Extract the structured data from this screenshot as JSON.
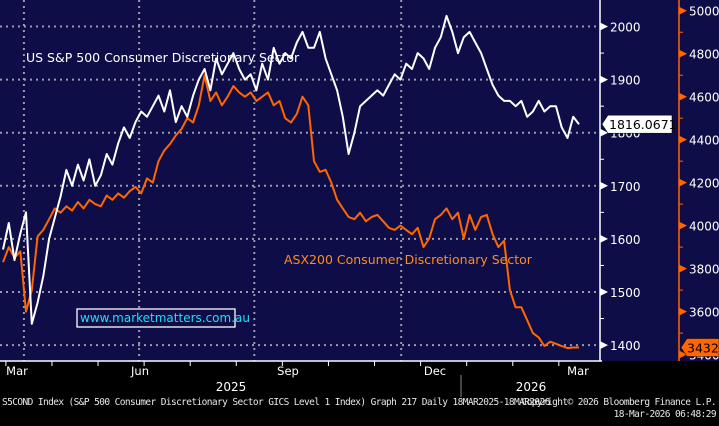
{
  "chart_data": {
    "type": "line",
    "title": "",
    "annotations": {
      "us_label": "US S&P 500 Consumer Discretionary Sector",
      "asx_label": "ASX200 Consumer Discretionary Sector",
      "website": "www.marketmatters.com.au"
    },
    "x_axis": {
      "range": [
        "2025-03-18",
        "2026-03-18"
      ],
      "month_ticks": [
        "Mar",
        "Jun",
        "Sep",
        "Dec",
        "Mar"
      ],
      "year_labels": [
        "2025",
        "2026"
      ]
    },
    "left_axis": {
      "series": "US S&P 500 Consumer Discretionary Sector",
      "range": [
        1370,
        2050
      ],
      "ticks": [
        1400,
        1500,
        1600,
        1700,
        1800,
        1900,
        2000
      ],
      "tick_labels": [
        "1400",
        "1500",
        "1600",
        "1700",
        "1800",
        "1900",
        "2000"
      ],
      "last_value_label": "1816.0671"
    },
    "right_axis": {
      "series": "ASX200 Consumer Discretionary Sector",
      "range": [
        3370,
        5050
      ],
      "ticks": [
        3400,
        3600,
        3800,
        4000,
        4200,
        4400,
        4600,
        4800,
        5000
      ],
      "tick_labels": [
        "3400",
        "3600",
        "3800",
        "4000",
        "4200",
        "4400",
        "4600",
        "4800",
        "5000"
      ],
      "last_value_label": "3432.7"
    },
    "grid": true,
    "legend": "none (inline annotations)",
    "series": [
      {
        "name": "US S&P 500 Consumer Discretionary Sector",
        "axis": "left",
        "color": "#ffffff",
        "t": [
          0,
          0.01,
          0.02,
          0.03,
          0.04,
          0.05,
          0.06,
          0.07,
          0.08,
          0.09,
          0.1,
          0.11,
          0.12,
          0.13,
          0.14,
          0.15,
          0.16,
          0.17,
          0.18,
          0.19,
          0.2,
          0.21,
          0.22,
          0.23,
          0.24,
          0.25,
          0.26,
          0.27,
          0.28,
          0.29,
          0.3,
          0.31,
          0.32,
          0.33,
          0.34,
          0.35,
          0.36,
          0.37,
          0.38,
          0.39,
          0.4,
          0.41,
          0.42,
          0.43,
          0.44,
          0.45,
          0.46,
          0.47,
          0.48,
          0.49,
          0.5,
          0.51,
          0.52,
          0.53,
          0.54,
          0.55,
          0.56,
          0.57,
          0.58,
          0.59,
          0.6,
          0.61,
          0.62,
          0.63,
          0.64,
          0.65,
          0.66,
          0.67,
          0.68,
          0.69,
          0.7,
          0.71,
          0.72,
          0.73,
          0.74,
          0.75,
          0.76,
          0.77,
          0.78,
          0.79,
          0.8,
          0.81,
          0.82,
          0.83,
          0.84,
          0.85,
          0.86,
          0.87,
          0.88,
          0.89,
          0.9,
          0.91,
          0.92,
          0.93,
          0.94,
          0.95,
          0.96,
          0.97,
          0.98,
          0.99,
          1
        ],
        "values": [
          1580,
          1630,
          1560,
          1610,
          1650,
          1440,
          1480,
          1530,
          1600,
          1640,
          1680,
          1730,
          1700,
          1740,
          1710,
          1750,
          1700,
          1720,
          1760,
          1740,
          1780,
          1810,
          1790,
          1820,
          1840,
          1830,
          1850,
          1870,
          1840,
          1880,
          1820,
          1850,
          1830,
          1870,
          1900,
          1920,
          1880,
          1940,
          1910,
          1930,
          1950,
          1920,
          1900,
          1910,
          1880,
          1930,
          1900,
          1960,
          1930,
          1950,
          1940,
          1970,
          1990,
          1960,
          1960,
          1990,
          1940,
          1910,
          1880,
          1830,
          1760,
          1800,
          1850,
          1860,
          1870,
          1880,
          1870,
          1890,
          1910,
          1900,
          1930,
          1920,
          1950,
          1940,
          1920,
          1960,
          1980,
          2020,
          1990,
          1950,
          1980,
          1990,
          1970,
          1950,
          1920,
          1890,
          1870,
          1860,
          1860,
          1850,
          1860,
          1830,
          1840,
          1860,
          1840,
          1850,
          1850,
          1810,
          1790,
          1830,
          1816
        ]
      },
      {
        "name": "ASX200 Consumer Discretionary Sector",
        "axis": "right",
        "color": "#ff6600",
        "t": [
          0,
          0.01,
          0.02,
          0.03,
          0.04,
          0.05,
          0.06,
          0.07,
          0.08,
          0.09,
          0.1,
          0.11,
          0.12,
          0.13,
          0.14,
          0.15,
          0.16,
          0.17,
          0.18,
          0.19,
          0.2,
          0.21,
          0.22,
          0.23,
          0.24,
          0.25,
          0.26,
          0.27,
          0.28,
          0.29,
          0.3,
          0.31,
          0.32,
          0.33,
          0.34,
          0.35,
          0.36,
          0.37,
          0.38,
          0.39,
          0.4,
          0.41,
          0.42,
          0.43,
          0.44,
          0.45,
          0.46,
          0.47,
          0.48,
          0.49,
          0.5,
          0.51,
          0.52,
          0.53,
          0.54,
          0.55,
          0.56,
          0.57,
          0.58,
          0.59,
          0.6,
          0.61,
          0.62,
          0.63,
          0.64,
          0.65,
          0.66,
          0.67,
          0.68,
          0.69,
          0.7,
          0.71,
          0.72,
          0.73,
          0.74,
          0.75,
          0.76,
          0.77,
          0.78,
          0.79,
          0.8,
          0.81,
          0.82,
          0.83,
          0.84,
          0.85,
          0.86,
          0.87,
          0.88,
          0.89,
          0.9,
          0.91,
          0.92,
          0.93,
          0.94,
          0.95,
          0.96,
          0.97,
          0.98,
          0.99,
          1
        ],
        "values": [
          3830,
          3900,
          3850,
          3880,
          3600,
          3700,
          3950,
          3980,
          4030,
          4080,
          4060,
          4090,
          4070,
          4110,
          4080,
          4120,
          4100,
          4090,
          4140,
          4120,
          4150,
          4130,
          4160,
          4180,
          4150,
          4220,
          4200,
          4300,
          4350,
          4380,
          4420,
          4450,
          4500,
          4480,
          4560,
          4700,
          4580,
          4620,
          4560,
          4600,
          4650,
          4620,
          4600,
          4620,
          4580,
          4600,
          4620,
          4560,
          4580,
          4500,
          4480,
          4520,
          4600,
          4560,
          4300,
          4250,
          4260,
          4200,
          4120,
          4080,
          4040,
          4030,
          4060,
          4020,
          4040,
          4050,
          4020,
          3990,
          3980,
          4000,
          3980,
          3960,
          3990,
          3900,
          3940,
          4030,
          4050,
          4080,
          4030,
          4060,
          3940,
          4050,
          3980,
          4040,
          4050,
          3960,
          3900,
          3930,
          3700,
          3620,
          3620,
          3560,
          3500,
          3480,
          3440,
          3460,
          3450,
          3440,
          3430,
          3433,
          3432.7
        ]
      }
    ]
  },
  "footer": {
    "left_text": "S5COND Index (S&P 500 Consumer Discretionary Sector GICS Level 1 Index) Graph 217 Daily 18MAR2025-18MAR2026",
    "copyright": "Copyright© 2026 Bloomberg Finance L.P.",
    "timestamp": "18-Mar-2026 06:48:29"
  },
  "colors": {
    "plot_background": "#0f0d47",
    "us_line": "#ffffff",
    "asx_line": "#ff6600",
    "asx_label": "#ff8c1a",
    "website_text": "#1ee0f0",
    "grid": "#9a9aa8",
    "page_background": "#000000"
  }
}
